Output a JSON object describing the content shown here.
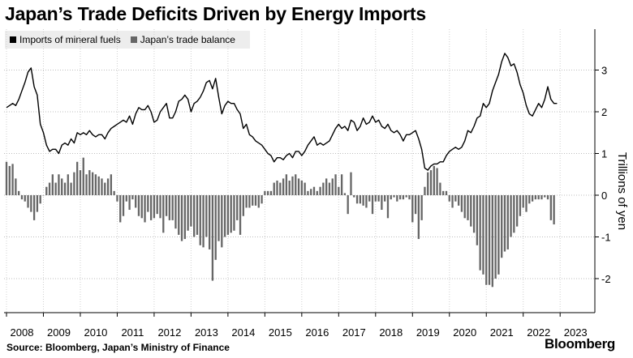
{
  "title": "Japan’s Trade Deficits Driven by Energy Imports",
  "legend": [
    {
      "label": "Imports of mineral fuels",
      "color": "#000000"
    },
    {
      "label": "Japan’s trade balance",
      "color": "#666666"
    }
  ],
  "source": "Source: Bloomberg, Japan’s Ministry of Finance",
  "brand": "Bloomberg",
  "chart_data": {
    "type": "bar",
    "x_start": "2008-01",
    "ylabel": "Trillions of yen",
    "ylim": [
      -2.8,
      4
    ],
    "yticks": [
      -2,
      -1,
      0,
      1,
      2,
      3
    ],
    "ytick_labels": [
      "-2",
      "-1",
      "0",
      "1",
      "2",
      "3"
    ],
    "xtick_labels": [
      "2008",
      "2009",
      "2010",
      "2011",
      "2012",
      "2013",
      "2014",
      "2015",
      "2016",
      "2017",
      "2018",
      "2019",
      "2020",
      "2021",
      "2022",
      "2023"
    ],
    "grid": "dotted",
    "legend_position": "top-left",
    "series": [
      {
        "name": "Imports of mineral fuels",
        "type": "line",
        "color": "#000000",
        "values": [
          2.1,
          2.15,
          2.2,
          2.15,
          2.3,
          2.5,
          2.7,
          2.95,
          3.05,
          2.6,
          2.4,
          1.7,
          1.5,
          1.2,
          1.05,
          1.1,
          1.1,
          1.0,
          1.2,
          1.25,
          1.2,
          1.35,
          1.25,
          1.5,
          1.45,
          1.5,
          1.45,
          1.55,
          1.45,
          1.4,
          1.45,
          1.45,
          1.35,
          1.5,
          1.6,
          1.65,
          1.7,
          1.75,
          1.8,
          1.75,
          1.9,
          1.7,
          1.95,
          2.1,
          2.05,
          2.05,
          2.15,
          2.0,
          1.75,
          1.8,
          2.0,
          2.1,
          2.2,
          1.85,
          1.85,
          2.0,
          2.25,
          2.3,
          2.4,
          2.3,
          2.0,
          2.2,
          2.25,
          2.35,
          2.5,
          2.7,
          2.75,
          2.55,
          2.8,
          2.35,
          1.95,
          2.15,
          2.25,
          2.2,
          2.2,
          2.05,
          1.95,
          1.6,
          1.7,
          1.45,
          1.4,
          1.3,
          1.25,
          1.2,
          1.1,
          1.0,
          0.95,
          0.8,
          0.9,
          0.9,
          0.85,
          0.95,
          1.0,
          0.9,
          1.05,
          1.05,
          0.95,
          1.05,
          1.2,
          1.3,
          1.4,
          1.2,
          1.25,
          1.2,
          1.25,
          1.3,
          1.45,
          1.6,
          1.7,
          1.6,
          1.65,
          1.55,
          1.8,
          1.75,
          1.55,
          1.65,
          1.85,
          1.7,
          1.75,
          1.9,
          1.75,
          1.8,
          1.65,
          1.6,
          1.7,
          1.55,
          1.5,
          1.55,
          1.45,
          1.3,
          1.45,
          1.45,
          1.5,
          1.55,
          1.35,
          1.1,
          0.65,
          0.6,
          0.7,
          0.75,
          0.75,
          0.8,
          0.8,
          0.95,
          1.05,
          1.1,
          1.15,
          1.1,
          1.15,
          1.3,
          1.55,
          1.5,
          1.65,
          1.85,
          1.9,
          2.2,
          2.1,
          2.2,
          2.5,
          2.7,
          2.9,
          3.2,
          3.4,
          3.3,
          3.1,
          3.15,
          2.95,
          2.65,
          2.45,
          2.15,
          1.95,
          1.9,
          2.05,
          2.2,
          2.1,
          2.3,
          2.6,
          2.3,
          2.2,
          2.2
        ]
      },
      {
        "name": "Japan’s trade balance",
        "type": "bar",
        "color": "#666666",
        "values": [
          0.8,
          0.7,
          0.75,
          0.4,
          0.1,
          -0.1,
          -0.15,
          -0.3,
          -0.4,
          -0.6,
          -0.4,
          -0.2,
          0.0,
          0.2,
          0.3,
          0.5,
          0.3,
          0.5,
          0.4,
          0.3,
          0.5,
          0.3,
          0.55,
          0.8,
          0.6,
          0.9,
          0.5,
          0.6,
          0.55,
          0.5,
          0.45,
          0.4,
          0.3,
          0.4,
          0.5,
          0.1,
          -0.15,
          -0.65,
          -0.5,
          -0.15,
          -0.35,
          -0.1,
          -0.3,
          -0.5,
          -0.55,
          -0.65,
          -0.4,
          -0.6,
          -0.55,
          -0.45,
          -0.55,
          -0.9,
          -0.5,
          -0.6,
          -0.6,
          -0.8,
          -0.95,
          -1.1,
          -1.05,
          -0.85,
          -0.75,
          -1.0,
          -0.95,
          -1.2,
          -1.25,
          -1.0,
          -1.3,
          -2.05,
          -1.55,
          -1.1,
          -1.25,
          -1.0,
          -0.95,
          -0.9,
          -0.85,
          -0.6,
          -0.95,
          -0.5,
          -0.3,
          -0.3,
          -0.25,
          -0.25,
          -0.3,
          -0.2,
          0.1,
          0.1,
          0.1,
          0.3,
          0.35,
          0.3,
          0.4,
          0.5,
          0.35,
          0.45,
          0.5,
          0.4,
          0.35,
          0.3,
          0.1,
          0.15,
          0.2,
          0.1,
          0.2,
          0.3,
          0.4,
          0.3,
          0.4,
          0.5,
          0.2,
          0.5,
          0.05,
          -0.45,
          0.55,
          -0.05,
          -0.2,
          -0.2,
          -0.25,
          -0.3,
          -0.15,
          -0.45,
          -0.15,
          -0.15,
          -0.35,
          -0.15,
          -0.55,
          -0.1,
          -0.05,
          -0.15,
          -0.1,
          -0.1,
          -0.05,
          -0.1,
          -0.65,
          -0.45,
          -1.05,
          -0.6,
          0.2,
          0.55,
          0.6,
          0.7,
          0.65,
          0.3,
          0.1,
          0.1,
          -0.15,
          -0.3,
          -0.15,
          -0.25,
          -0.4,
          -0.55,
          -0.6,
          -0.75,
          -0.9,
          -1.2,
          -1.8,
          -1.9,
          -2.15,
          -2.15,
          -2.2,
          -2.0,
          -1.9,
          -1.5,
          -1.35,
          -1.3,
          -1.0,
          -0.9,
          -0.75,
          -0.5,
          -0.3,
          -0.4,
          -0.2,
          -0.15,
          -0.1,
          -0.1,
          -0.1,
          -0.05,
          -0.1,
          -0.6,
          -0.7
        ]
      }
    ]
  }
}
